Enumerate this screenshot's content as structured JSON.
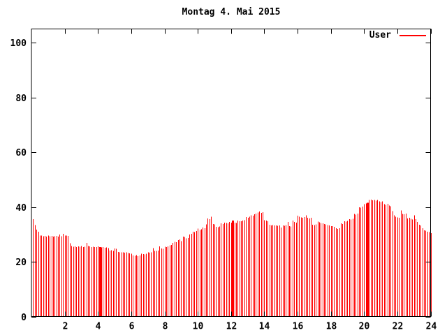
{
  "title": "Montag 4. Mai 2015",
  "legend": {
    "label": "User"
  },
  "colors": {
    "background": "#ffffff",
    "series": "#ff0000",
    "axis": "#000000",
    "text": "#000000"
  },
  "chart_data": {
    "type": "bar",
    "title": "Montag 4. Mai 2015",
    "xlabel": "",
    "ylabel": "",
    "xlim": [
      0,
      24
    ],
    "ylim": [
      0,
      105
    ],
    "x_ticks": [
      2,
      4,
      6,
      8,
      10,
      12,
      14,
      16,
      18,
      20,
      22,
      24
    ],
    "y_ticks": [
      0,
      20,
      40,
      60,
      80,
      100
    ],
    "grid": false,
    "legend_position": "top-right-inside",
    "bar_style": "impulses",
    "x_start_hour": 0.1,
    "sample_interval_hours": 0.1,
    "merged_double_bars_at_hours": [
      4.1,
      12.1,
      20.2
    ],
    "series": [
      {
        "name": "User",
        "color": "#ff0000",
        "values": [
          35.5,
          33.4,
          31.7,
          31.0,
          29.6,
          29.5,
          29.3,
          29.4,
          29.2,
          29.5,
          29.3,
          29.4,
          29.2,
          29.3,
          29.4,
          29.2,
          30.0,
          29.3,
          30.2,
          29.6,
          29.5,
          29.4,
          26.8,
          25.7,
          25.5,
          25.6,
          25.4,
          25.6,
          25.5,
          25.7,
          25.4,
          25.5,
          26.9,
          25.8,
          25.6,
          25.4,
          25.5,
          25.3,
          25.4,
          25.6,
          25.3,
          25.2,
          25.3,
          25.1,
          25.2,
          25.0,
          24.1,
          24.2,
          24.0,
          24.9,
          24.7,
          23.6,
          23.5,
          23.4,
          23.5,
          23.3,
          23.4,
          23.2,
          23.1,
          23.0,
          22.3,
          22.2,
          22.4,
          22.1,
          22.3,
          22.9,
          22.8,
          22.7,
          22.9,
          23.4,
          23.3,
          23.5,
          25.0,
          24.0,
          23.9,
          24.1,
          25.6,
          24.8,
          24.7,
          25.5,
          25.4,
          25.6,
          26.0,
          26.1,
          26.9,
          27.3,
          27.2,
          27.9,
          28.2,
          27.5,
          29.2,
          29.0,
          28.5,
          28.7,
          30.0,
          30.2,
          31.0,
          30.8,
          31.2,
          32.1,
          31.6,
          31.8,
          32.5,
          32.3,
          33.6,
          35.8,
          35.5,
          36.4,
          33.8,
          33.6,
          32.8,
          32.6,
          32.9,
          34.0,
          33.8,
          34.3,
          34.1,
          34.0,
          34.5,
          34.3,
          35.1,
          34.3,
          34.1,
          35.0,
          34.8,
          34.8,
          35.0,
          35.2,
          36.3,
          36.1,
          36.4,
          37.0,
          36.8,
          37.3,
          37.6,
          38.0,
          38.3,
          37.9,
          38.1,
          35.2,
          35.0,
          34.8,
          33.5,
          33.3,
          33.4,
          33.2,
          33.3,
          33.1,
          33.2,
          32.5,
          33.3,
          33.1,
          33.4,
          34.5,
          33.0,
          32.9,
          35.0,
          34.5,
          34.3,
          36.8,
          36.5,
          36.2,
          36.0,
          36.3,
          37.0,
          36.0,
          35.8,
          36.1,
          33.5,
          33.4,
          33.6,
          34.6,
          34.4,
          34.2,
          34.0,
          33.8,
          33.6,
          33.4,
          33.2,
          33.0,
          33.0,
          32.8,
          32.2,
          32.0,
          32.3,
          34.0,
          33.8,
          34.8,
          34.6,
          34.9,
          35.6,
          35.4,
          35.7,
          37.5,
          37.2,
          37.6,
          39.9,
          39.7,
          40.1,
          41.0,
          41.3,
          41.5,
          42.5,
          42.7,
          42.4,
          42.6,
          42.3,
          42.5,
          42.0,
          41.8,
          42.1,
          41.0,
          40.8,
          41.2,
          40.5,
          40.3,
          38.5,
          37.0,
          36.5,
          36.2,
          36.0,
          38.8,
          37.5,
          37.3,
          37.6,
          35.8,
          36.0,
          35.7,
          35.4,
          37.0,
          35.5,
          34.5,
          33.5,
          33.3,
          32.3,
          31.5,
          31.3,
          31.0,
          30.8,
          30.5
        ]
      }
    ]
  }
}
